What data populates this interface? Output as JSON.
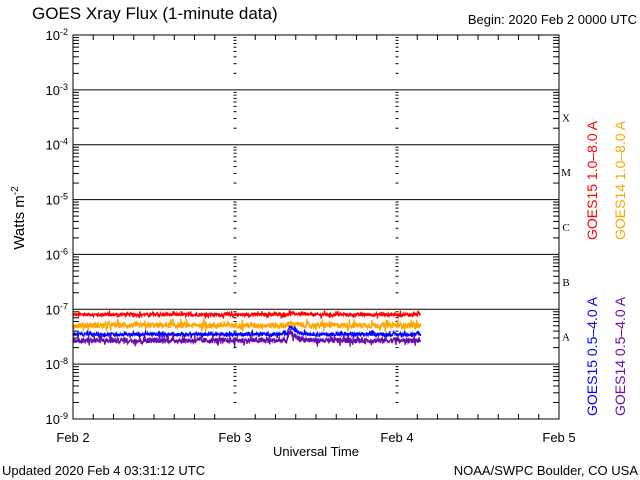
{
  "chart_data": {
    "type": "line",
    "title": "GOES Xray Flux (1-minute data)",
    "begin_label": "Begin:  2020 Feb 2 0000 UTC",
    "xlabel": "Universal Time",
    "ylabel": "Watts m",
    "ylabel_exponent": "-2",
    "y_scale": "log",
    "ylim": [
      1e-09,
      0.01
    ],
    "y_tick_exponents": [
      "-2",
      "-3",
      "-4",
      "-5",
      "-6",
      "-7",
      "-8",
      "-9"
    ],
    "x_range_days": [
      0,
      3
    ],
    "x_ticks": [
      {
        "day": 0,
        "label": "Feb 2"
      },
      {
        "day": 1,
        "label": "Feb 3"
      },
      {
        "day": 2,
        "label": "Feb 4"
      },
      {
        "day": 3,
        "label": "Feb 5"
      }
    ],
    "flare_classes": [
      {
        "label": "X",
        "decade": -4
      },
      {
        "label": "M",
        "decade": -5
      },
      {
        "label": "C",
        "decade": -6
      },
      {
        "label": "B",
        "decade": -7
      },
      {
        "label": "A",
        "decade": -8
      }
    ],
    "data_end_day": 2.146,
    "series": [
      {
        "name": "GOES15 1.0-8.0 A",
        "color": "#ff0000",
        "base": 8e-08,
        "noise_dex": 0.03,
        "blip_peak": 8.6e-08
      },
      {
        "name": "GOES14 1.0-8.0 A",
        "color": "#ffa500",
        "base": 5.1e-08,
        "noise_dex": 0.05,
        "blip_peak": 5.6e-08
      },
      {
        "name": "GOES15 0.5-4.0 A",
        "color": "#0000ff",
        "base": 3.5e-08,
        "noise_dex": 0.03,
        "blip_peak": 5e-08
      },
      {
        "name": "GOES14 0.5-4.0 A",
        "color": "#6a0dad",
        "base": 2.7e-08,
        "noise_dex": 0.05,
        "blip_peak": 3.9e-08
      }
    ],
    "blip_day": 1.34
  },
  "footer": {
    "updated": "Updated 2020 Feb  4 03:31:12 UTC",
    "credit": "NOAA/SWPC Boulder, CO USA"
  }
}
